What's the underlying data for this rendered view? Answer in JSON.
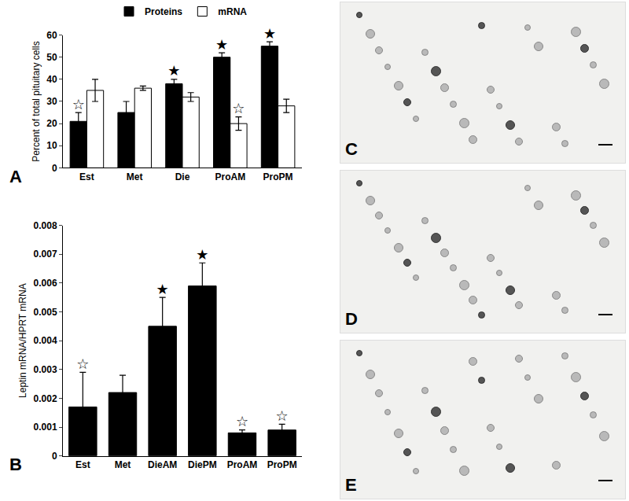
{
  "chart_data": [
    {
      "type": "bar",
      "panel": "A",
      "y_label": "Percent of total pituitary cells",
      "categories": [
        "Est",
        "Met",
        "Die",
        "ProAM",
        "ProPM"
      ],
      "series": [
        {
          "name": "Proteins",
          "color": "#000000",
          "values": [
            21,
            25,
            38,
            50,
            55
          ],
          "errors": [
            4,
            5,
            2,
            2,
            2
          ],
          "stars": [
            "☆",
            null,
            "★",
            "★",
            "★"
          ]
        },
        {
          "name": "mRNA",
          "color": "#ffffff",
          "values": [
            35,
            36,
            32,
            20,
            28
          ],
          "errors": [
            5,
            1,
            2,
            3,
            3
          ],
          "stars": [
            null,
            null,
            null,
            "☆",
            null
          ]
        }
      ],
      "ylim": [
        0,
        60
      ],
      "yticks": [
        0,
        10,
        20,
        30,
        40,
        50,
        60
      ],
      "grid": false,
      "legend": "top"
    },
    {
      "type": "bar",
      "panel": "B",
      "y_label": "Leptin mRNA/HPRT mRNA",
      "categories": [
        "Est",
        "Met",
        "DieAM",
        "DiePM",
        "ProAM",
        "ProPM"
      ],
      "series": [
        {
          "color": "#000000",
          "values": [
            0.0017,
            0.0022,
            0.0045,
            0.0059,
            0.0008,
            0.0009
          ],
          "errors": [
            0.0012,
            0.0006,
            0.001,
            0.0008,
            0.0001,
            0.0002
          ],
          "stars": [
            "☆",
            null,
            "★",
            "★",
            "☆",
            "☆"
          ]
        }
      ],
      "ylim": [
        0,
        0.008
      ],
      "yticks": [
        0,
        0.001,
        0.002,
        0.003,
        0.004,
        0.005,
        0.006,
        0.007,
        0.008
      ],
      "grid": false
    }
  ],
  "images": {
    "panels": [
      "C",
      "D",
      "E"
    ]
  }
}
